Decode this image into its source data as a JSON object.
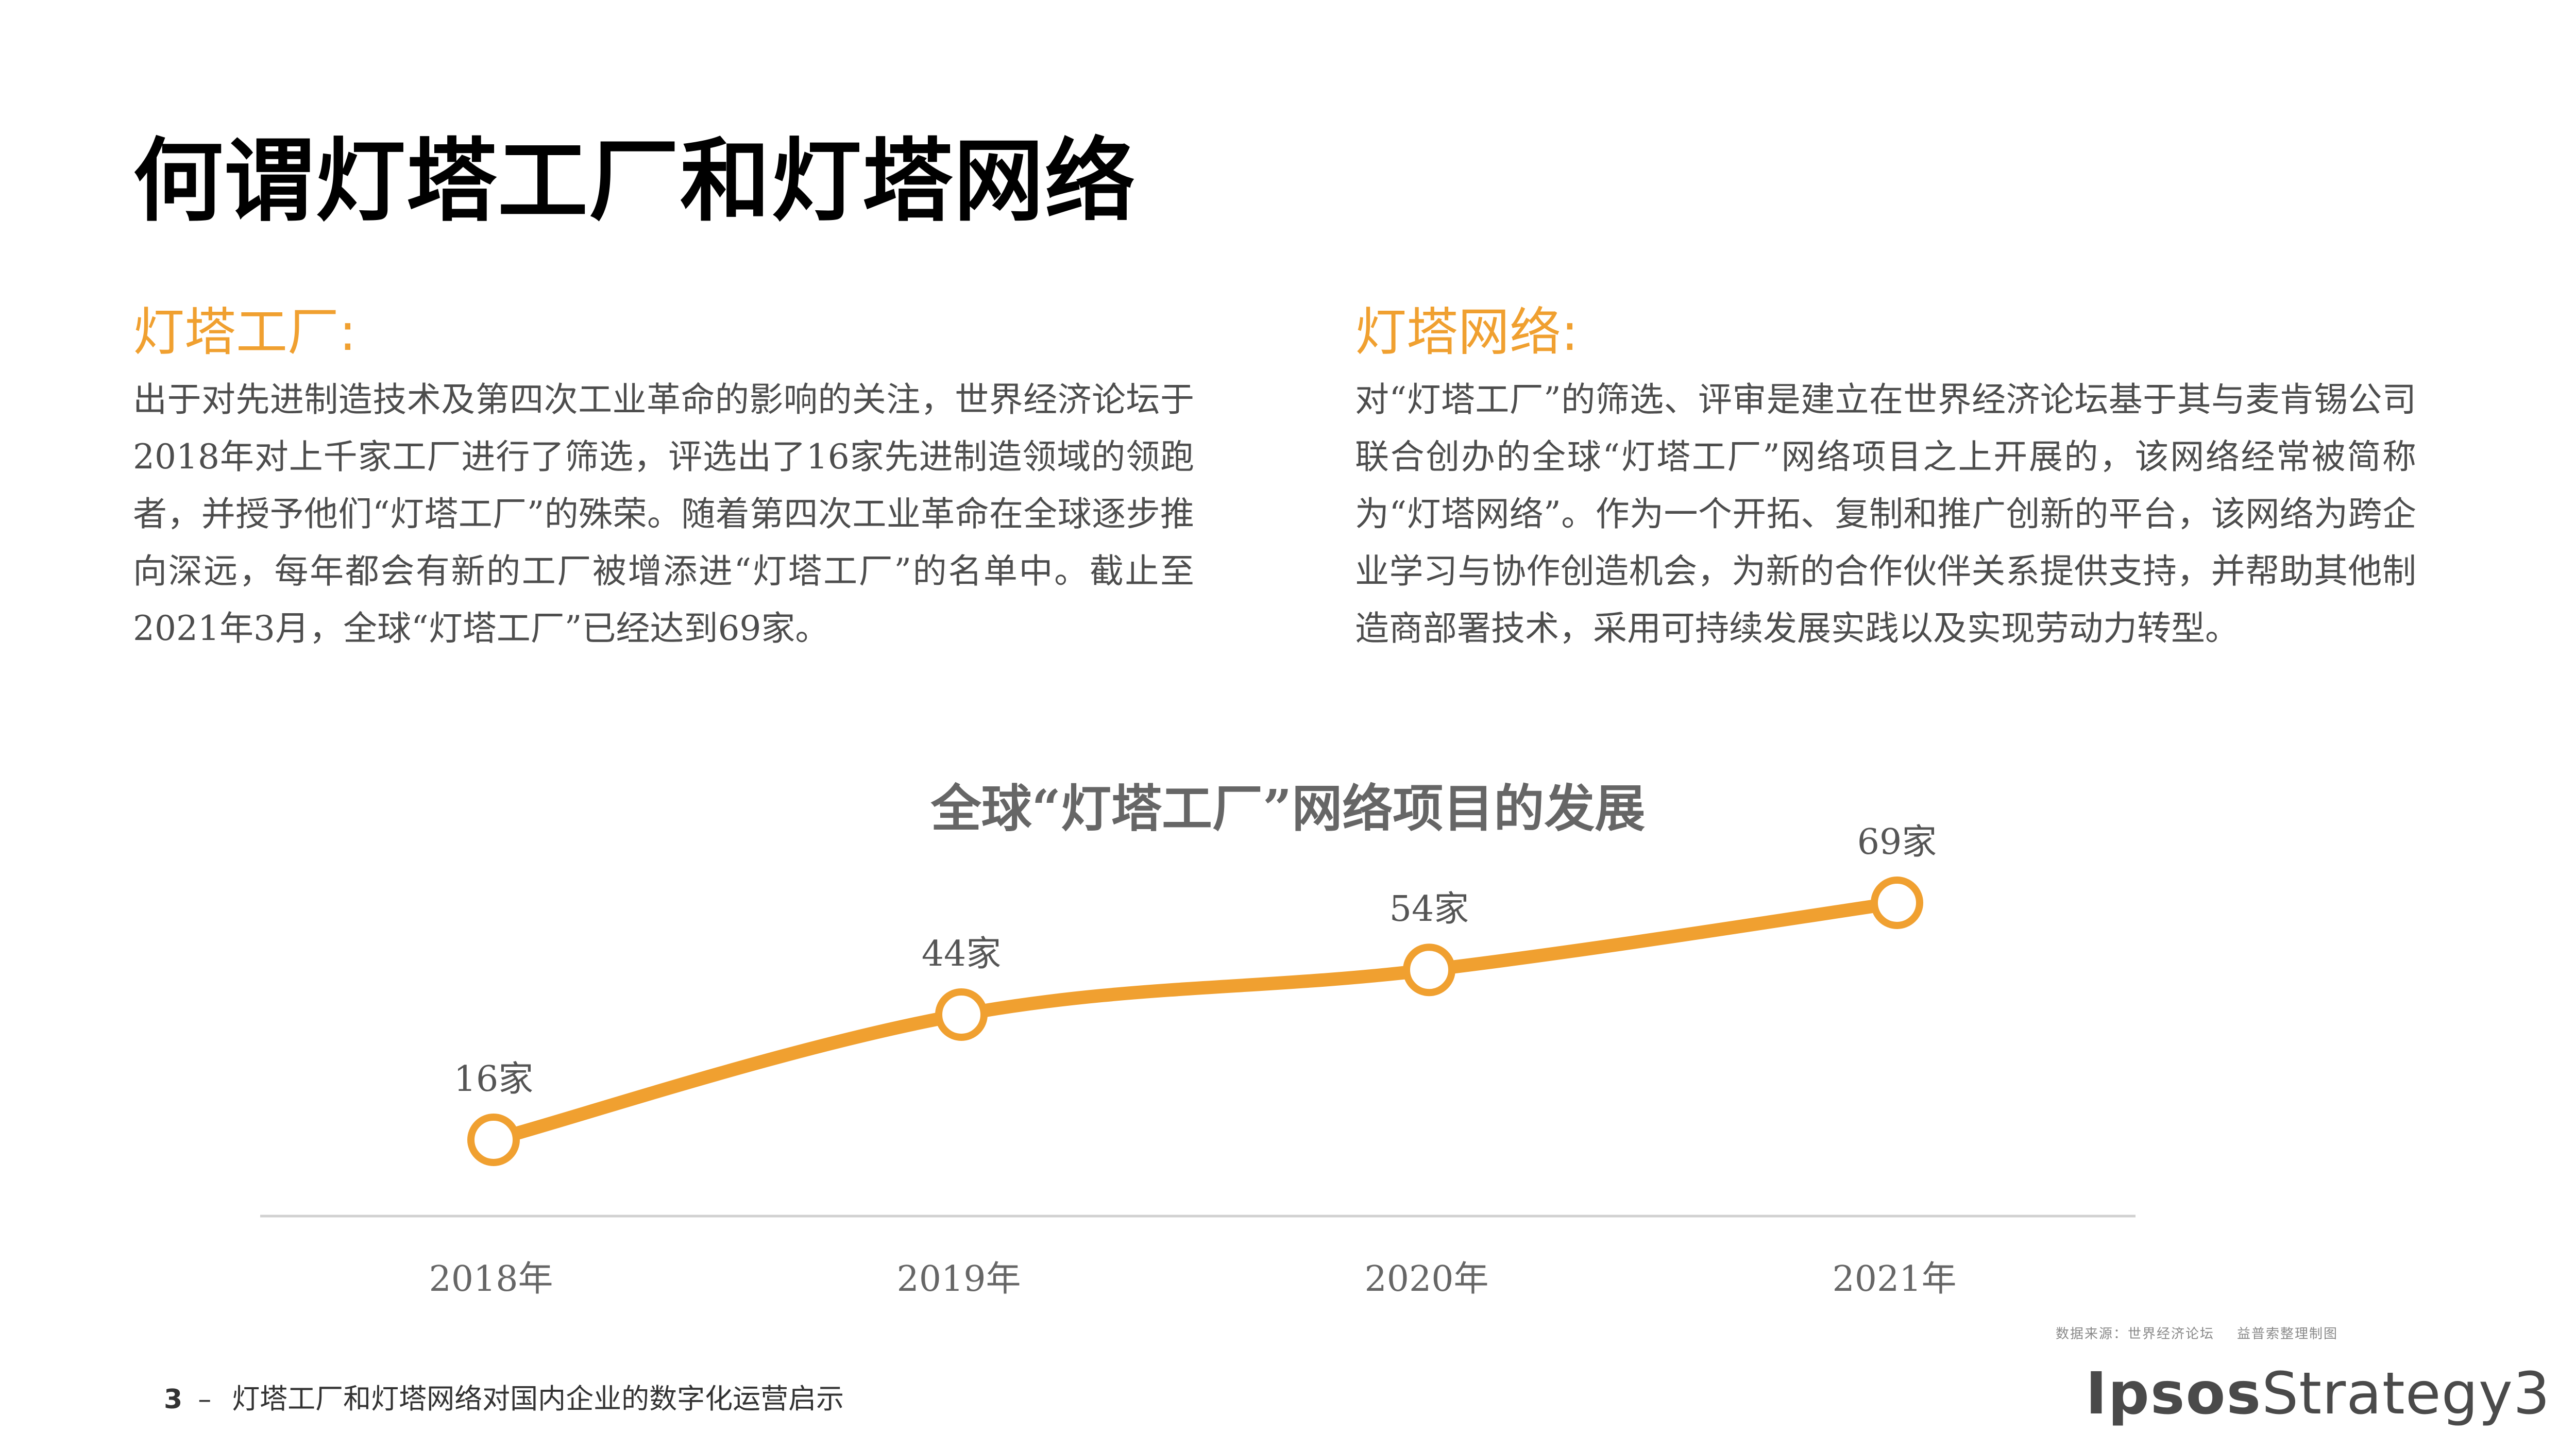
{
  "title": "何谓灯塔工厂和灯塔网络",
  "sections": [
    {
      "heading": "灯塔工厂:",
      "body": "出于对先进制造技术及第四次工业革命的影响的关注，世界经济论坛于2018年对上千家工厂进行了筛选，评选出了16家先进制造领域的领跑者，并授予他们“灯塔工厂”的殊荣。随着第四次工业革命在全球逐步推向深远，每年都会有新的工厂被增添进“灯塔工厂”的名单中。截止至2021年3月，全球“灯塔工厂”已经达到69家。"
    },
    {
      "heading": "灯塔网络:",
      "body": "对“灯塔工厂”的筛选、评审是建立在世界经济论坛基于其与麦肯锡公司联合创办的全球“灯塔工厂”网络项目之上开展的，该网络经常被简称为“灯塔网络”。作为一个开拓、复制和推广创新的平台，该网络为跨企业学习与协作创造机会，为新的合作伙伴关系提供支持，并帮助其他制造商部署技术，采用可持续发展实践以及实现劳动力转型。"
    }
  ],
  "chart_data": {
    "type": "line",
    "title": "全球“灯塔工厂”网络项目的发展",
    "categories": [
      "2018年",
      "2019年",
      "2020年",
      "2021年"
    ],
    "values": [
      16,
      44,
      54,
      69
    ],
    "data_labels": [
      "16家",
      "44家",
      "54家",
      "69家"
    ],
    "xlabel": "",
    "ylabel": "",
    "y_axis_visible": false,
    "grid": false,
    "legend": "none",
    "line_color": "#f0a030",
    "marker_fill": "#ffffff"
  },
  "source_note": {
    "source": "数据来源：世界经济论坛",
    "credit": "益普索整理制图"
  },
  "footer": {
    "page_number": "3",
    "dash": "–",
    "text": "灯塔工厂和灯塔网络对国内企业的数字化运营启示"
  },
  "brand": {
    "ipsos": "Ipsos",
    "strategy": "Strategy3"
  },
  "colors": {
    "accent": "#f0a030",
    "body_text": "#4d4d4d",
    "title_text": "#000000"
  }
}
